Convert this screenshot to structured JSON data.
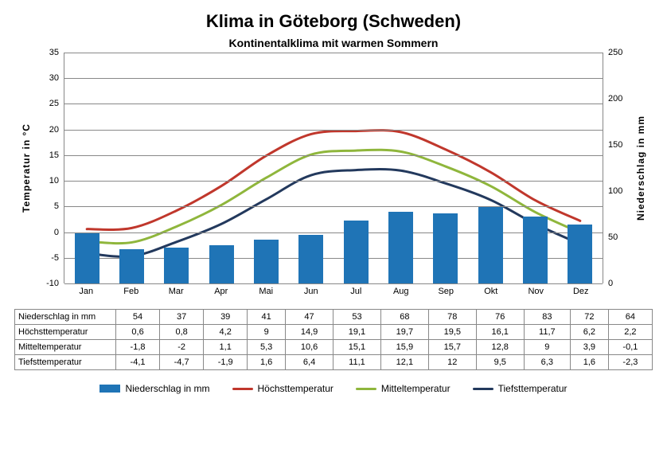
{
  "title": "Klima in Göteborg (Schweden)",
  "subtitle": "Kontinentalklima mit warmen Sommern",
  "axis": {
    "left_label": "Temperatur  in  °C",
    "right_label": "Niederschlag  in  mm",
    "left": {
      "min": -10,
      "max": 35,
      "step": 5
    },
    "right": {
      "min": 0,
      "max": 250,
      "step": 50
    },
    "grid_color": "#888888"
  },
  "months": [
    "Jan",
    "Feb",
    "Mar",
    "Apr",
    "Mai",
    "Jun",
    "Jul",
    "Aug",
    "Sep",
    "Okt",
    "Nov",
    "Dez"
  ],
  "series": {
    "precip": {
      "label": "Niederschlag in mm",
      "row_label": "Niederschlag in mm",
      "color": "#1f74b6",
      "bar_width": 0.55,
      "values": [
        54,
        37,
        39,
        41,
        47,
        53,
        68,
        78,
        76,
        83,
        72,
        64
      ],
      "type": "bar",
      "axis": "right"
    },
    "tmax": {
      "label": "Höchsttemperatur",
      "row_label": "Höchsttemperatur",
      "color": "#c0372c",
      "line_width": 3,
      "values": [
        0.6,
        0.8,
        4.2,
        9.0,
        14.9,
        19.1,
        19.7,
        19.5,
        16.1,
        11.7,
        6.2,
        2.2
      ],
      "type": "line",
      "axis": "left"
    },
    "tmean": {
      "label": "Mitteltemperatur",
      "row_label": "Mitteltemperatur",
      "color": "#8fb63c",
      "line_width": 3,
      "values": [
        -1.8,
        -2.0,
        1.1,
        5.3,
        10.6,
        15.1,
        15.9,
        15.7,
        12.8,
        9.0,
        3.9,
        -0.1
      ],
      "type": "line",
      "axis": "left"
    },
    "tmin": {
      "label": "Tiefsttemperatur",
      "row_label": "Tiefsttemperatur",
      "color": "#23395d",
      "line_width": 3,
      "values": [
        -4.1,
        -4.7,
        -1.9,
        1.6,
        6.4,
        11.1,
        12.1,
        12.0,
        9.5,
        6.3,
        1.6,
        -2.3
      ],
      "type": "line",
      "axis": "left"
    }
  },
  "table_row_order": [
    "precip",
    "tmax",
    "tmean",
    "tmin"
  ],
  "legend_order": [
    "precip",
    "tmax",
    "tmean",
    "tmin"
  ],
  "decimal_separator": ",",
  "background_color": "#ffffff"
}
